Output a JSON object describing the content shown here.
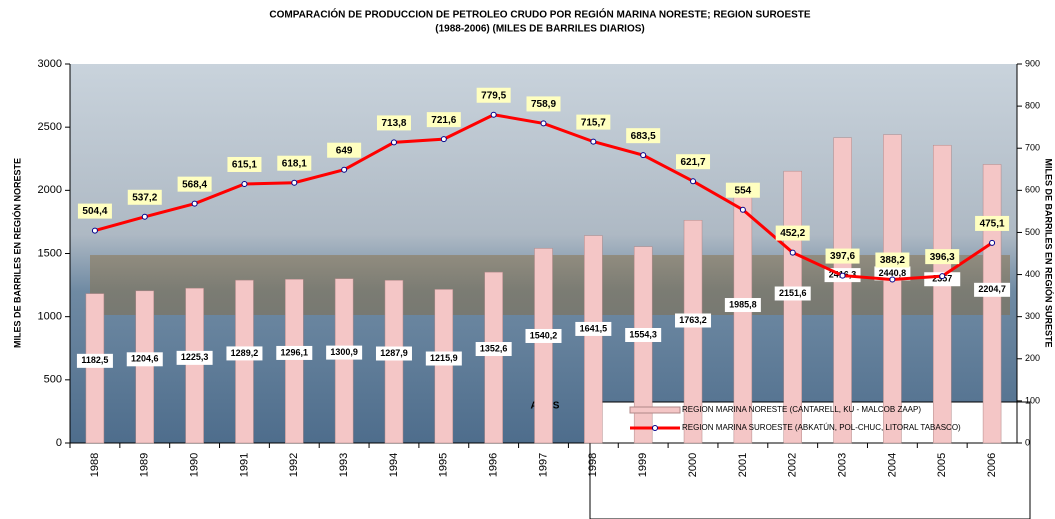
{
  "chart_data": {
    "type": "bar_line",
    "title": "COMPARACIÓN  DE PRODUCCION DE PETROLEO CRUDO POR REGIÓN MARINA NORESTE; REGION SUROESTE",
    "subtitle": "(1988-2006) (MILES DE BARRILES DIARIOS)",
    "x_label": "AÑOS",
    "y_label": "MILES DE BARRILES EN REGIÓN NORESTE",
    "y2_label": "MILES DE BARRILES EN REGIÓN SURESTE",
    "categories": [
      "1988",
      "1989",
      "1990",
      "1991",
      "1992",
      "1993",
      "1994",
      "1995",
      "1996",
      "1997",
      "1998",
      "1999",
      "2000",
      "2001",
      "2002",
      "2003",
      "2004",
      "2005",
      "2006"
    ],
    "series": [
      {
        "name": "REGION MARINA NORESTE (CANTARELL, KU - MALCOB ZAAP)",
        "kind": "bar",
        "color": "#f4c6c6",
        "values": [
          1182.5,
          1204.6,
          1225.3,
          1289.2,
          1296.1,
          1300.9,
          1287.9,
          1215.9,
          1352.6,
          1540.2,
          1641.5,
          1554.3,
          1763.2,
          1985.8,
          2151.6,
          2416.3,
          2440.8,
          2357,
          2204.7
        ],
        "value_labels": [
          "1182,5",
          "1204,6",
          "1225,3",
          "1289,2",
          "1296,1",
          "1300,9",
          "1287,9",
          "1215,9",
          "1352,6",
          "1540,2",
          "1641,5",
          "1554,3",
          "1763,2",
          "1985,8",
          "2151,6",
          "2416,3",
          "2440,8",
          "2357",
          "2204,7"
        ]
      },
      {
        "name": "REGION MARINA SUROESTE (ABKATÚN, POL-CHUC, LITORAL TABASCO)",
        "kind": "line",
        "axis": "y2",
        "color": "#ff0000",
        "values": [
          504.4,
          537.2,
          568.4,
          615.1,
          618.1,
          649,
          713.8,
          721.6,
          779.5,
          758.9,
          715.7,
          683.5,
          621.7,
          554,
          452.2,
          397.6,
          388.2,
          396.3,
          475.1
        ],
        "value_labels": [
          "504,4",
          "537,2",
          "568,4",
          "615,1",
          "618,1",
          "649",
          "713,8",
          "721,6",
          "779,5",
          "758,9",
          "715,7",
          "683,5",
          "621,7",
          "554",
          "452,2",
          "397,6",
          "388,2",
          "396,3",
          "475,1"
        ]
      }
    ],
    "ylim": [
      0,
      3000
    ],
    "yticks": [
      0,
      500,
      1000,
      1500,
      2000,
      2500,
      3000
    ],
    "y2lim": [
      0,
      900
    ],
    "y2ticks": [
      0,
      100,
      200,
      300,
      400,
      500,
      600,
      700,
      800,
      900
    ]
  }
}
